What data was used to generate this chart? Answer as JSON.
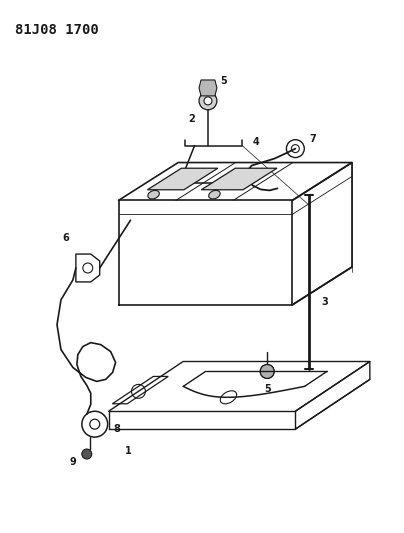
{
  "title": "81J08 1700",
  "bg_color": "#ffffff",
  "line_color": "#1a1a1a",
  "title_fontsize": 10,
  "title_fontweight": "bold",
  "figsize": [
    4.04,
    5.33
  ],
  "dpi": 100
}
